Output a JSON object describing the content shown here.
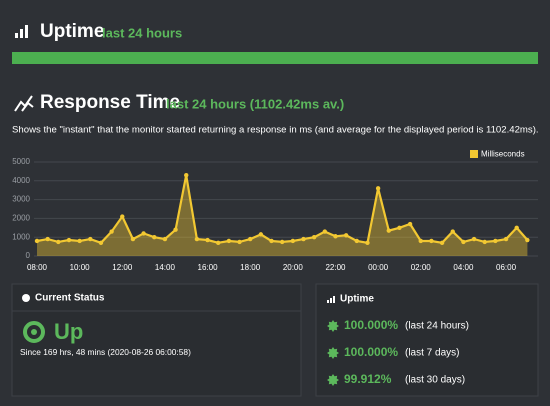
{
  "uptime_header": {
    "title": "Uptime",
    "period": "last 24 hours"
  },
  "response_header": {
    "title": "Response Time",
    "period": "last 24 hours (1102.42ms av.)",
    "description": "Shows the \"instant\" that the monitor started returning a response in ms (and average for the displayed period is 1102.42ms)."
  },
  "chart_data": {
    "type": "line",
    "categories": [
      "08:00",
      null,
      null,
      null,
      "10:00",
      null,
      null,
      null,
      "12:00",
      null,
      null,
      null,
      "14:00",
      null,
      null,
      null,
      "16:00",
      null,
      null,
      null,
      "18:00",
      null,
      null,
      null,
      "20:00",
      null,
      null,
      null,
      "22:00",
      null,
      null,
      null,
      "00:00",
      null,
      null,
      null,
      "02:00",
      null,
      null,
      null,
      "04:00",
      null,
      null,
      null,
      "06:00",
      null,
      null
    ],
    "series": [
      {
        "name": "Milliseconds",
        "color": "#f2c832",
        "values": [
          800,
          900,
          750,
          850,
          800,
          900,
          700,
          1300,
          2100,
          900,
          1200,
          1000,
          900,
          1400,
          4300,
          900,
          850,
          700,
          800,
          750,
          900,
          1150,
          800,
          750,
          800,
          900,
          1000,
          1300,
          1050,
          1100,
          800,
          700,
          3600,
          1350,
          1500,
          1700,
          800,
          800,
          700,
          1300,
          750,
          900,
          750,
          800,
          900,
          1500,
          850
        ]
      }
    ],
    "ylim": [
      0,
      5000
    ],
    "yticks": [
      0,
      1000,
      2000,
      3000,
      4000,
      5000
    ],
    "grid": true,
    "legend": "top-right"
  },
  "current_status": {
    "title": "Current Status",
    "status": "Up",
    "since": "Since 169 hrs, 48 mins (2020-08-26 06:00:58)"
  },
  "uptime_panel": {
    "title": "Uptime",
    "rows": [
      {
        "value": "100.000%",
        "period": "(last 24 hours)"
      },
      {
        "value": "100.000%",
        "period": "(last 7 days)"
      },
      {
        "value": "99.912%",
        "period": "(last 30 days)"
      }
    ]
  }
}
